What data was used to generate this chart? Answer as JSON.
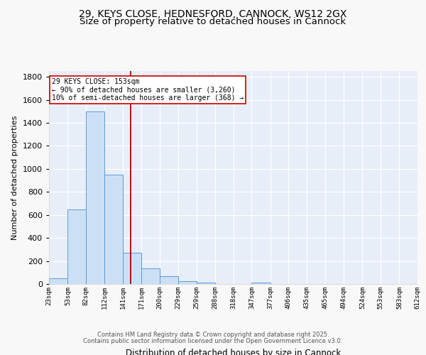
{
  "title1": "29, KEYS CLOSE, HEDNESFORD, CANNOCK, WS12 2GX",
  "title2": "Size of property relative to detached houses in Cannock",
  "xlabel": "Distribution of detached houses by size in Cannock",
  "ylabel": "Number of detached properties",
  "bar_edges": [
    23,
    53,
    82,
    112,
    141,
    171,
    200,
    229,
    259,
    288,
    318,
    347,
    377,
    406,
    435,
    465,
    494,
    524,
    553,
    583,
    612
  ],
  "bar_heights": [
    50,
    650,
    1500,
    950,
    270,
    135,
    65,
    25,
    15,
    0,
    0,
    15,
    0,
    0,
    0,
    0,
    0,
    0,
    0,
    0
  ],
  "bar_color": "#cce0f5",
  "bar_edge_color": "#5b9bd5",
  "vline_x": 153,
  "vline_color": "#aa0000",
  "annotation_line1": "29 KEYS CLOSE: 153sqm",
  "annotation_line2": "← 90% of detached houses are smaller (3,260)",
  "annotation_line3": "10% of semi-detached houses are larger (368) →",
  "annotation_box_color": "#ffffff",
  "annotation_box_edge": "#cc0000",
  "ylim": [
    0,
    1850
  ],
  "yticks": [
    0,
    200,
    400,
    600,
    800,
    1000,
    1200,
    1400,
    1600,
    1800
  ],
  "bg_color": "#e8eef8",
  "grid_color": "#ffffff",
  "footer1": "Contains HM Land Registry data © Crown copyright and database right 2025.",
  "footer2": "Contains public sector information licensed under the Open Government Licence v3.0.",
  "title_fontsize": 10,
  "subtitle_fontsize": 9.5,
  "tick_labels": [
    "23sqm",
    "53sqm",
    "82sqm",
    "112sqm",
    "141sqm",
    "171sqm",
    "200sqm",
    "229sqm",
    "259sqm",
    "288sqm",
    "318sqm",
    "347sqm",
    "377sqm",
    "406sqm",
    "435sqm",
    "465sqm",
    "494sqm",
    "524sqm",
    "553sqm",
    "583sqm",
    "612sqm"
  ]
}
